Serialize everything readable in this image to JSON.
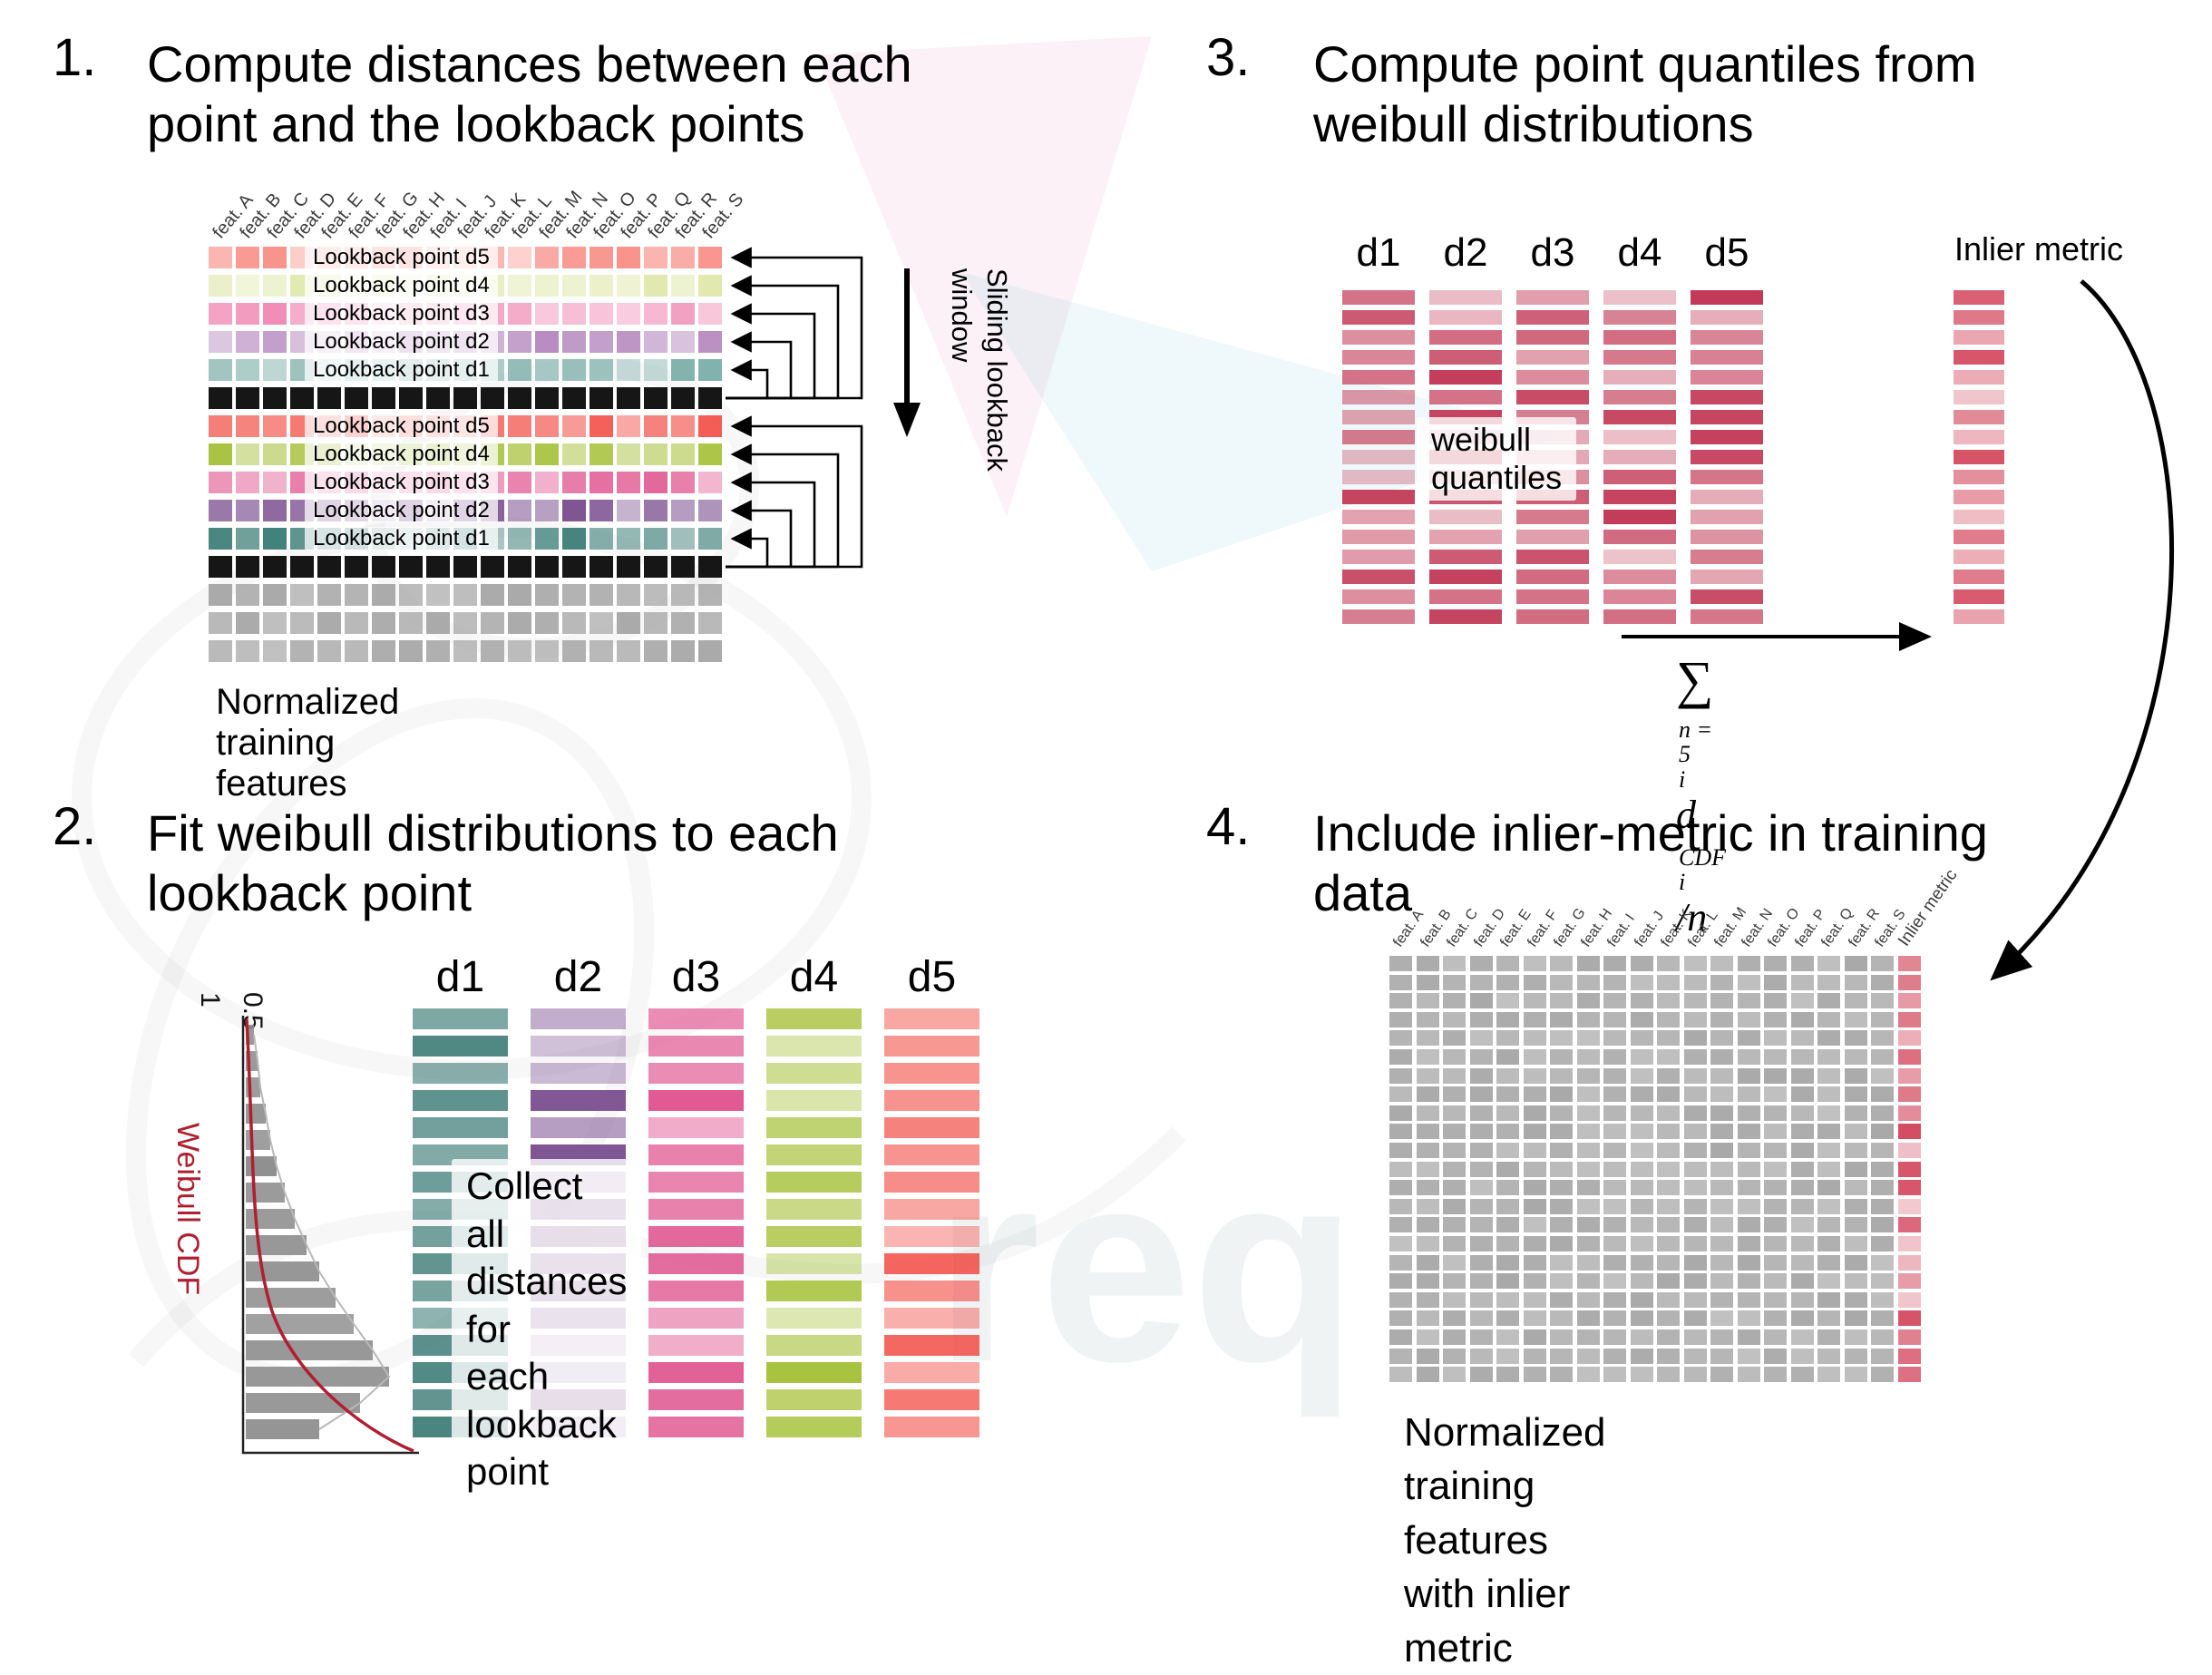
{
  "palette": {
    "black_row": "#161616",
    "gray_row": "#a9a9a9",
    "quantile_red": "#c23a57",
    "inlier_red": "#d4germ4b60",
    "weibull_curve": "#b01f30",
    "hist_gray": "#8f8f8f"
  },
  "features": [
    "feat. A",
    "feat. B",
    "feat. C",
    "feat. D",
    "feat. E",
    "feat. F",
    "feat. G",
    "feat. H",
    "feat. I",
    "feat. J",
    "feat. K",
    "feat. L",
    "feat. M",
    "feat. N",
    "feat. O",
    "feat. P",
    "feat. Q",
    "feat. R",
    "feat. S"
  ],
  "panel1": {
    "number": "1.",
    "title": "Compute distances between each\npoint and the lookback points",
    "rows": [
      {
        "kind": "lookback",
        "label": "Lookback point d5",
        "color": "#f9928a"
      },
      {
        "kind": "lookback",
        "label": "Lookback point d4",
        "color": "#dce6a3"
      },
      {
        "kind": "lookback",
        "label": "Lookback point d3",
        "color": "#f08cb4"
      },
      {
        "kind": "lookback",
        "label": "Lookback point d2",
        "color": "#b78cc0"
      },
      {
        "kind": "lookback",
        "label": "Lookback point d1",
        "color": "#7fb0ab"
      },
      {
        "kind": "current",
        "color": "#161616"
      },
      {
        "kind": "lookback",
        "label": "Lookback point d5",
        "color": "#f2473f"
      },
      {
        "kind": "lookback",
        "label": "Lookback point d4",
        "color": "#a9c23f"
      },
      {
        "kind": "lookback",
        "label": "Lookback point d3",
        "color": "#e0558f"
      },
      {
        "kind": "lookback",
        "label": "Lookback point d2",
        "color": "#7d5292"
      },
      {
        "kind": "lookback",
        "label": "Lookback point d1",
        "color": "#41807a"
      },
      {
        "kind": "current",
        "color": "#161616"
      },
      {
        "kind": "plain",
        "color": "#a9a9a9"
      },
      {
        "kind": "plain",
        "color": "#a9a9a9"
      },
      {
        "kind": "plain",
        "color": "#a9a9a9"
      }
    ],
    "sliding_label": "Sliding lookback\nwindow",
    "caption": "Normalized training features"
  },
  "panel2": {
    "number": "2.",
    "title": "Fit weibull distributions to each\nlookback point",
    "axis_ticks": [
      "1",
      "0.5"
    ],
    "cdf_label": "Weibull CDF",
    "histogram": [
      0.05,
      0.07,
      0.09,
      0.12,
      0.15,
      0.19,
      0.24,
      0.3,
      0.37,
      0.45,
      0.55,
      0.66,
      0.78,
      0.88,
      0.7,
      0.45
    ],
    "columns": [
      {
        "label": "d1",
        "color": "#3f7d78"
      },
      {
        "label": "d2",
        "color": "#7d5292"
      },
      {
        "label": "d3",
        "color": "#e0558f"
      },
      {
        "label": "d4",
        "color": "#a9c23f"
      },
      {
        "label": "d5",
        "color": "#f2473f"
      }
    ],
    "bars_per_column": 16,
    "overlay": "Collect all distances for\neach lookback point"
  },
  "panel3": {
    "number": "3.",
    "title": "Compute point quantiles from\nweibull distributions",
    "columns": [
      "d1",
      "d2",
      "d3",
      "d4",
      "d5"
    ],
    "bars_per_column": 17,
    "overlay": "weibull quantiles",
    "inlier_label": "Inlier metric",
    "formula": {
      "sum": "∑",
      "sum_sup": "n = 5",
      "sum_sub": "i",
      "var": "d",
      "var_sup": "CDF",
      "var_sub": "i",
      "tail": "/n"
    }
  },
  "panel4": {
    "number": "4.",
    "title": "Include inlier-metric in training\ndata",
    "inlier_header": "Inlier metric",
    "rows": 23,
    "caption": "Normalized training features\nwith inlier metric"
  }
}
